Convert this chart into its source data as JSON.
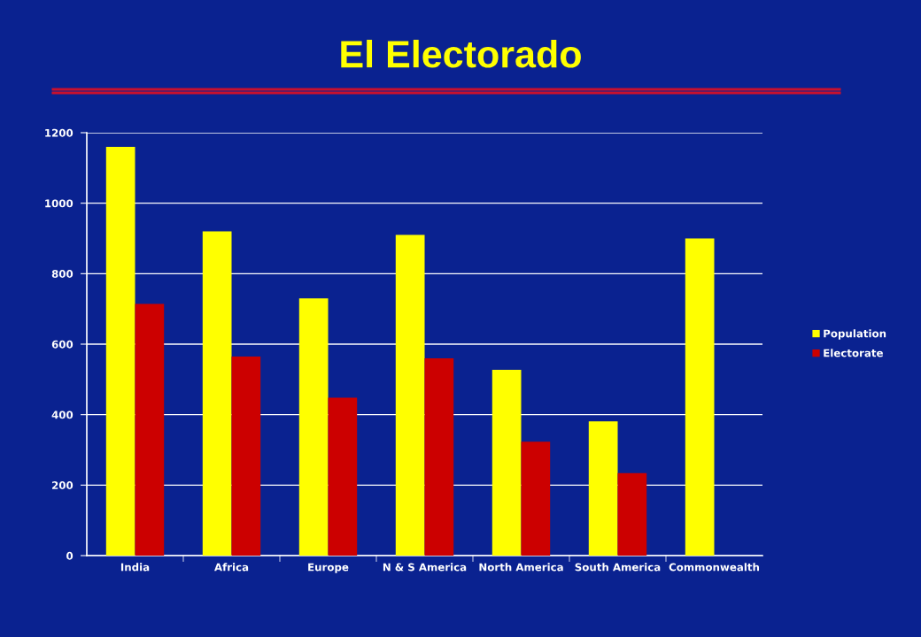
{
  "chart_data": {
    "type": "bar",
    "title": "El Electorado",
    "categories": [
      "India",
      "Africa",
      "Europe",
      "N & S America",
      "North America",
      "South America",
      "Commonwealth"
    ],
    "series": [
      {
        "name": "Population",
        "color": "#ffff00",
        "values": [
          1160,
          920,
          730,
          910,
          527,
          381,
          900
        ]
      },
      {
        "name": "Electorate",
        "color": "#cc0000",
        "values": [
          714,
          565,
          448,
          560,
          323,
          234,
          null
        ]
      }
    ],
    "ylim": [
      0,
      1200
    ],
    "yticks": [
      0,
      200,
      400,
      600,
      800,
      1000,
      1200
    ],
    "grid": "y",
    "legend": "right"
  }
}
